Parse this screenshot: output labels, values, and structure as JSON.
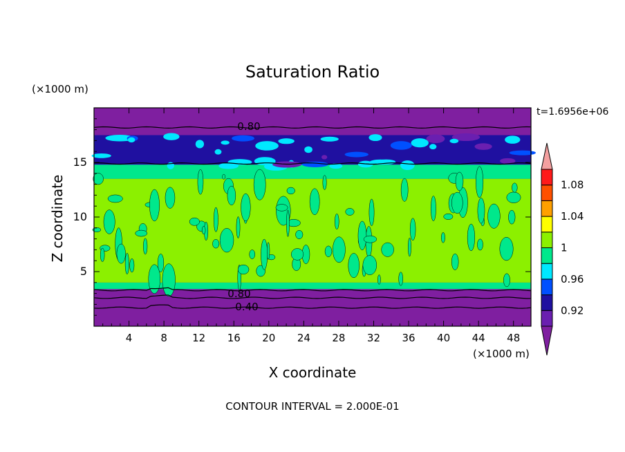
{
  "chart_data": {
    "type": "heatmap",
    "title": "Saturation Ratio",
    "xlabel": "X coordinate",
    "ylabel": "Z coordinate",
    "x_unit": "(×1000 m)",
    "y_unit": "(×1000 m)",
    "xlim": [
      0,
      50
    ],
    "ylim": [
      0,
      20
    ],
    "x_ticks": [
      "4",
      "8",
      "12",
      "16",
      "20",
      "24",
      "28",
      "32",
      "36",
      "40",
      "44",
      "48"
    ],
    "y_ticks": [
      "5",
      "10",
      "15"
    ],
    "time_label": "t=1.6956e+06",
    "footer": "CONTOUR INTERVAL = 2.000E-01",
    "contour_labels": [
      "0.80",
      "0.80",
      "0.40"
    ],
    "colorbar": {
      "labels": [
        "0.92",
        "0.96",
        "1",
        "1.04",
        "1.08"
      ],
      "levels": [
        0.9,
        0.92,
        0.94,
        0.96,
        0.98,
        1.0,
        1.02,
        1.04,
        1.06,
        1.08,
        1.1
      ],
      "colors": [
        "#7f1fa0",
        "#6a1fb0",
        "#1f10a0",
        "#0050ff",
        "#00e8ff",
        "#00e88c",
        "#8cf000",
        "#ffff00",
        "#ffa000",
        "#ff5000",
        "#ff1a1a",
        "#f4a0a0"
      ]
    },
    "bands": [
      {
        "z_from": 0.0,
        "z_to": 3.4,
        "value": 0.4,
        "fill": "#7f1fa0"
      },
      {
        "z_from": 3.4,
        "z_to": 4.0,
        "value": 0.98,
        "fill": "#00e88c"
      },
      {
        "z_from": 4.0,
        "z_to": 13.5,
        "value": 1.0,
        "fill": "#8cf000"
      },
      {
        "z_from": 13.5,
        "z_to": 14.8,
        "value": 0.98,
        "fill": "#00e88c"
      },
      {
        "z_from": 14.8,
        "z_to": 17.5,
        "value": 0.92,
        "fill": "#1f10a0"
      },
      {
        "z_from": 17.5,
        "z_to": 20.0,
        "value": 0.8,
        "fill": "#7f1fa0"
      }
    ]
  }
}
